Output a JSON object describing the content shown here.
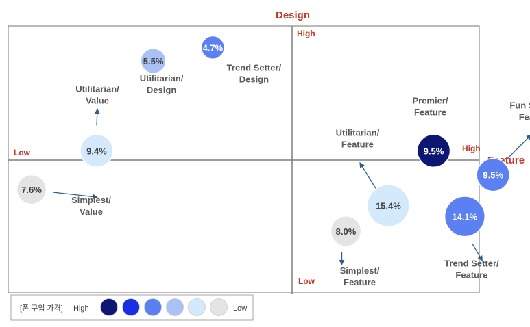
{
  "chart_data": {
    "type": "bubble",
    "title_y": "Design",
    "title_x": "Feature",
    "axis_labels": {
      "top": "High",
      "bottom": "Low",
      "left": "Low",
      "right": "High"
    },
    "xlim": [
      -1,
      1
    ],
    "ylim": [
      -1,
      1
    ],
    "colors": {
      "navy": "#0d1773",
      "blue": "#1a2ee6",
      "mid": "#5a80f2",
      "light": "#a9c1f5",
      "pale": "#d4e9fb",
      "gray": "#e4e4e4",
      "axis_label": "#c0392b",
      "text_dark": "#595959",
      "arrow": "#2e5e8c"
    },
    "bubbles": [
      {
        "id": "utilitarian-design",
        "value_label": "5.5%",
        "share": 5.5,
        "x": -0.49,
        "y": 0.74,
        "color": "light",
        "text_color": "#404040",
        "label_lines": [
          "Utilitarian/",
          "Design"
        ],
        "arrow": false
      },
      {
        "id": "trend-setter-design",
        "value_label": "4.7%",
        "share": 4.7,
        "x": -0.28,
        "y": 0.84,
        "color": "mid",
        "text_color": "#ffffff",
        "label_lines": [
          "Trend Setter/",
          "Design"
        ],
        "arrow": false
      },
      {
        "id": "utilitarian-value",
        "value_label": "9.4%",
        "share": 9.4,
        "x": -0.69,
        "y": 0.07,
        "color": "pale",
        "text_color": "#404040",
        "label_lines": [
          "Utilitarian/",
          "Value"
        ],
        "arrow": true
      },
      {
        "id": "simplest-value",
        "value_label": "7.6%",
        "share": 7.6,
        "x": -0.92,
        "y": -0.22,
        "color": "gray",
        "text_color": "#404040",
        "label_lines": [
          "Simplest/",
          "Value"
        ],
        "arrow": true
      },
      {
        "id": "premier-feature",
        "value_label": "9.5%",
        "share": 9.5,
        "x": 0.5,
        "y": 0.07,
        "color": "navy",
        "text_color": "#ffffff",
        "label_lines": [
          "Premier/",
          "Feature"
        ],
        "arrow": false
      },
      {
        "id": "fun-seeker-feature",
        "value_label": "9.5%",
        "share": 9.5,
        "x": 0.71,
        "y": -0.11,
        "color": "mid",
        "text_color": "#ffffff",
        "label_lines": [
          "Fun Seeker/",
          "Feature"
        ],
        "arrow": true
      },
      {
        "id": "utilitarian-feature",
        "value_label": "15.4%",
        "share": 15.4,
        "x": 0.34,
        "y": -0.34,
        "color": "pale",
        "text_color": "#404040",
        "label_lines": [
          "Utilitarian/",
          "Feature"
        ],
        "arrow": true
      },
      {
        "id": "trend-setter-feature",
        "value_label": "14.1%",
        "share": 14.1,
        "x": 0.61,
        "y": -0.42,
        "color": "mid",
        "text_color": "#ffffff",
        "label_lines": [
          "Trend Setter/",
          "Feature"
        ],
        "arrow": true
      },
      {
        "id": "simplest-feature",
        "value_label": "8.0%",
        "share": 8.0,
        "x": 0.19,
        "y": -0.53,
        "color": "gray",
        "text_color": "#404040",
        "label_lines": [
          "Simplest/",
          "Feature"
        ],
        "arrow": true
      }
    ],
    "legend": {
      "title": "[폰 구입 가격]",
      "high": "High",
      "low": "Low",
      "swatches": [
        "navy",
        "blue",
        "mid",
        "light",
        "pale",
        "gray"
      ]
    }
  }
}
